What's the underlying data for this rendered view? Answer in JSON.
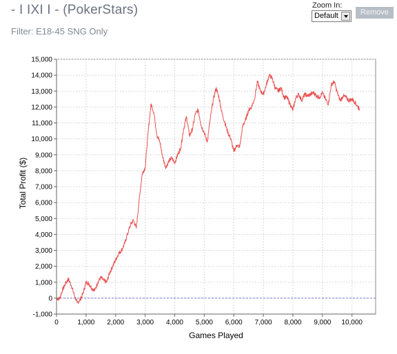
{
  "header": {
    "title": "- I IXI I - (PokerStars)",
    "filter": "Filter: E18-45 SNG Only"
  },
  "zoom": {
    "label": "Zoom In:",
    "selected": "Default",
    "remove_label": "Remove"
  },
  "colors": {
    "series": "#e85050",
    "zero_line": "#7777dd",
    "grid": "#d8d8d8",
    "disabled_button": "#b8bec6"
  },
  "chart_data": {
    "type": "line",
    "title": "",
    "xlabel": "Games Played",
    "ylabel": "Total Profit ($)",
    "xlim": [
      0,
      10800
    ],
    "ylim": [
      -1000,
      15000
    ],
    "xticks": [
      0,
      1000,
      2000,
      3000,
      4000,
      5000,
      6000,
      7000,
      8000,
      9000,
      10000
    ],
    "xtick_labels": [
      "0",
      "1,000",
      "2,000",
      "3,000",
      "4,000",
      "5,000",
      "6,000",
      "7,000",
      "8,000",
      "9,000",
      "10,000"
    ],
    "yticks": [
      -1000,
      0,
      1000,
      2000,
      3000,
      4000,
      5000,
      6000,
      7000,
      8000,
      9000,
      10000,
      11000,
      12000,
      13000,
      14000,
      15000
    ],
    "ytick_labels": [
      "-1,000",
      "0",
      "1,000",
      "2,000",
      "3,000",
      "4,000",
      "5,000",
      "6,000",
      "7,000",
      "8,000",
      "9,000",
      "10,000",
      "11,000",
      "12,000",
      "13,000",
      "14,000",
      "15,000"
    ],
    "grid": true,
    "zero_line": 0,
    "series": [
      {
        "x": [
          0,
          100,
          200,
          300,
          400,
          500,
          600,
          700,
          800,
          900,
          1000,
          1100,
          1200,
          1300,
          1400,
          1500,
          1600,
          1700,
          1800,
          1900,
          2000,
          2100,
          2200,
          2300,
          2400,
          2500,
          2600,
          2700,
          2800,
          2900,
          3000,
          3100,
          3200,
          3300,
          3400,
          3500,
          3600,
          3700,
          3800,
          3900,
          4000,
          4100,
          4200,
          4300,
          4400,
          4500,
          4600,
          4700,
          4800,
          4900,
          5000,
          5100,
          5200,
          5300,
          5400,
          5500,
          5600,
          5700,
          5800,
          5900,
          6000,
          6100,
          6200,
          6300,
          6400,
          6500,
          6600,
          6700,
          6800,
          6900,
          7000,
          7100,
          7200,
          7300,
          7400,
          7500,
          7600,
          7700,
          7800,
          7900,
          8000,
          8100,
          8200,
          8300,
          8400,
          8500,
          8600,
          8700,
          8800,
          8900,
          9000,
          9100,
          9200,
          9300,
          9400,
          9500,
          9600,
          9700,
          9800,
          9900,
          10000,
          10100,
          10200,
          10250
        ],
        "y": [
          0,
          -50,
          500,
          900,
          1200,
          800,
          200,
          -300,
          -100,
          300,
          1000,
          900,
          600,
          500,
          1000,
          1300,
          1100,
          1000,
          1600,
          2000,
          2400,
          2800,
          3000,
          3400,
          4000,
          4600,
          4900,
          4400,
          6200,
          7800,
          8200,
          10400,
          12200,
          11600,
          10200,
          9800,
          8800,
          8200,
          8600,
          8800,
          8500,
          9000,
          9400,
          10600,
          11400,
          10200,
          10600,
          11600,
          11800,
          10800,
          10400,
          9800,
          11200,
          12400,
          13200,
          12600,
          11600,
          11000,
          10400,
          10000,
          9200,
          9600,
          9500,
          10800,
          11200,
          11800,
          12000,
          12500,
          13600,
          13000,
          12800,
          13400,
          14000,
          13800,
          13200,
          13000,
          13200,
          12600,
          12600,
          12200,
          11800,
          12600,
          12800,
          12400,
          12800,
          12700,
          12800,
          12900,
          12700,
          12600,
          12900,
          12500,
          12200,
          13400,
          13600,
          12900,
          12400,
          12700,
          12600,
          12400,
          12500,
          12300,
          12000,
          11900
        ]
      }
    ]
  }
}
